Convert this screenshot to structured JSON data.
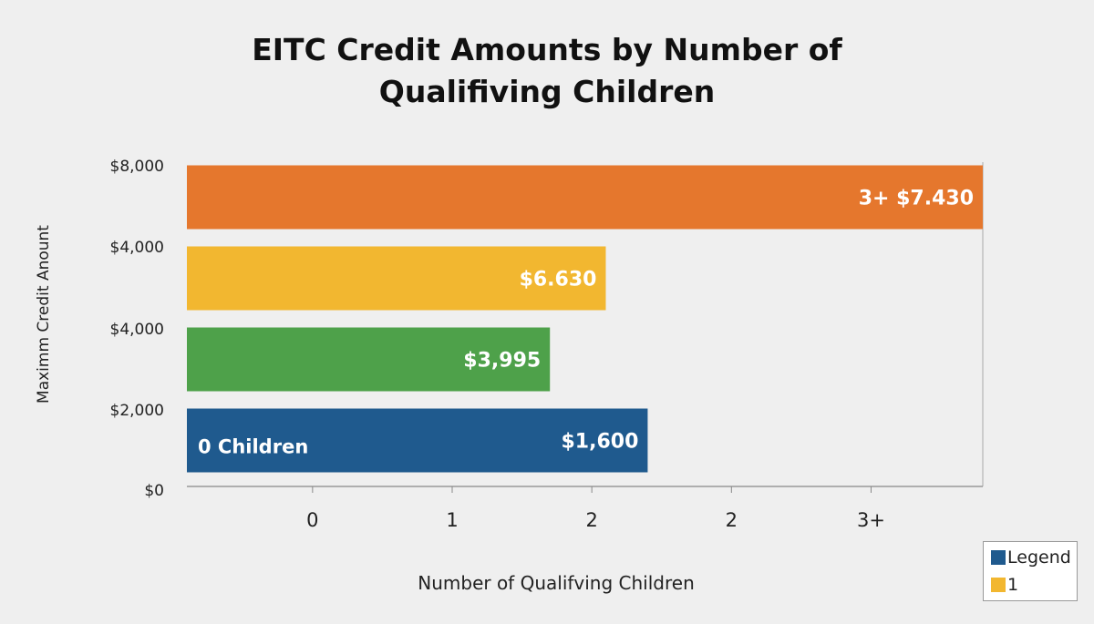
{
  "chart_data": {
    "type": "bar",
    "orientation": "horizontal",
    "title_lines": [
      "EITC Credit Amounts by Number of",
      "Qualifiving Children"
    ],
    "ylabel": "Maximm Credit Anount",
    "xlabel": "Number of Qualifving Children",
    "y_tick_labels": [
      "$8,000",
      "$4,000",
      "$4,000",
      "$2,000",
      "$0"
    ],
    "x_tick_labels": [
      "0",
      "1",
      "2",
      "2",
      "3+"
    ],
    "x_tick_values": [
      0,
      1,
      2,
      3,
      4
    ],
    "xlim": [
      -0.9,
      4.8
    ],
    "bars": [
      {
        "label": "$1,600",
        "inner_label": "0 Children",
        "value": 2.4,
        "color": "#1f5a8e"
      },
      {
        "label": "$3,995",
        "inner_label": "",
        "value": 1.7,
        "color": "#4ea14a"
      },
      {
        "label": "$6.630",
        "inner_label": "",
        "value": 2.1,
        "color": "#f2b730"
      },
      {
        "label": "3+ $7.430",
        "inner_label": "",
        "value": 4.8,
        "color": "#e5772d"
      }
    ],
    "legend": {
      "position": "bottom-right",
      "entries": [
        {
          "label": "Legend",
          "color": "#1f5a8e"
        },
        {
          "label": "1",
          "color": "#f2b730"
        }
      ]
    },
    "grid": false
  }
}
